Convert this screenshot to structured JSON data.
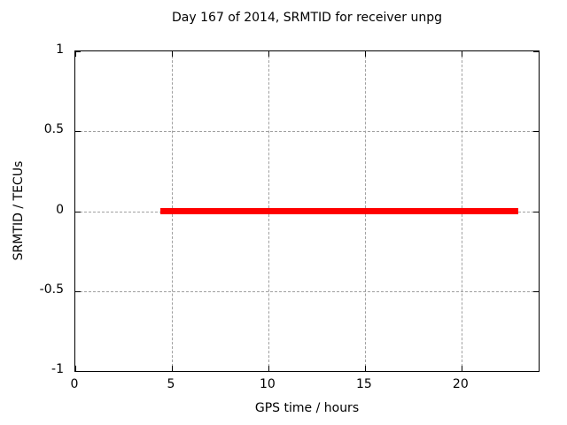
{
  "chart_data": {
    "type": "line",
    "title": "Day 167 of 2014, SRMTID for receiver unpg",
    "xlabel": "GPS time / hours",
    "ylabel": "SRMTID / TECUs",
    "xlim": [
      0,
      24
    ],
    "ylim": [
      -1,
      1
    ],
    "xticks": [
      0,
      5,
      10,
      15,
      20
    ],
    "xtick_labels": [
      "0",
      "5",
      "10",
      "15",
      "20"
    ],
    "yticks": [
      1,
      0.5,
      0,
      -0.5,
      -1
    ],
    "ytick_labels": [
      "1",
      "0.5",
      "0",
      "-0.5",
      "-1"
    ],
    "grid": true,
    "legend": "none",
    "series": [
      {
        "name": "SRMTID",
        "color": "#ff0000",
        "y_value": 0,
        "x_start": 4.4,
        "x_end": 22.95
      }
    ],
    "colors": {
      "background": "#ffffff",
      "axis": "#000000",
      "grid": "#a0a0a0",
      "text": "#000000"
    }
  }
}
